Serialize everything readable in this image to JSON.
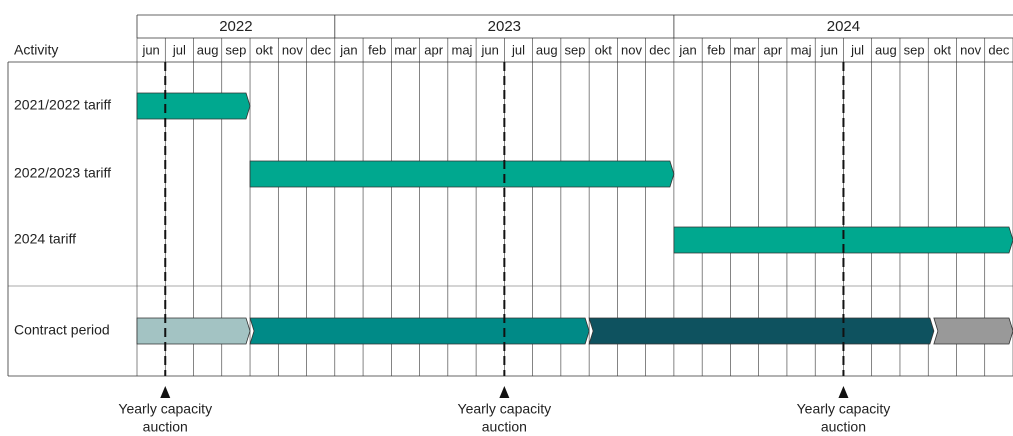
{
  "header": {
    "activity_label": "Activity"
  },
  "years": [
    {
      "label": "2022",
      "start": 0,
      "months": 7
    },
    {
      "label": "2023",
      "start": 7,
      "months": 12
    },
    {
      "label": "2024",
      "start": 19,
      "months": 12
    }
  ],
  "months": [
    "jun",
    "jul",
    "aug",
    "sep",
    "okt",
    "nov",
    "dec",
    "jan",
    "feb",
    "mar",
    "apr",
    "maj",
    "jun",
    "jul",
    "aug",
    "sep",
    "okt",
    "nov",
    "dec",
    "jan",
    "feb",
    "mar",
    "apr",
    "maj",
    "jun",
    "jul",
    "aug",
    "sep",
    "okt",
    "nov",
    "dec"
  ],
  "rows": [
    {
      "label": "2021/2022 tariff",
      "color": "#00a88f",
      "bars": [
        {
          "start": 0,
          "end": 4
        }
      ]
    },
    {
      "label": "2022/2023 tariff",
      "color": "#00a88f",
      "bars": [
        {
          "start": 4,
          "end": 19
        }
      ]
    },
    {
      "label": "2024 tariff",
      "color": "#00a88f",
      "bars": [
        {
          "start": 19,
          "end": 31
        }
      ]
    }
  ],
  "contract": {
    "label": "Contract period",
    "segments": [
      {
        "start": 0,
        "end": 4,
        "color": "#a3c3c3"
      },
      {
        "start": 4,
        "end": 16,
        "color": "#008a87"
      },
      {
        "start": 16,
        "end": 28.2,
        "color": "#0e525f"
      },
      {
        "start": 28.2,
        "end": 31,
        "color": "#999999"
      }
    ]
  },
  "auctions": [
    {
      "month": 1,
      "line1": "Yearly capacity",
      "line2": "auction"
    },
    {
      "month": 13,
      "line1": "Yearly capacity",
      "line2": "auction"
    },
    {
      "month": 25,
      "line1": "Yearly capacity",
      "line2": "auction"
    }
  ]
}
